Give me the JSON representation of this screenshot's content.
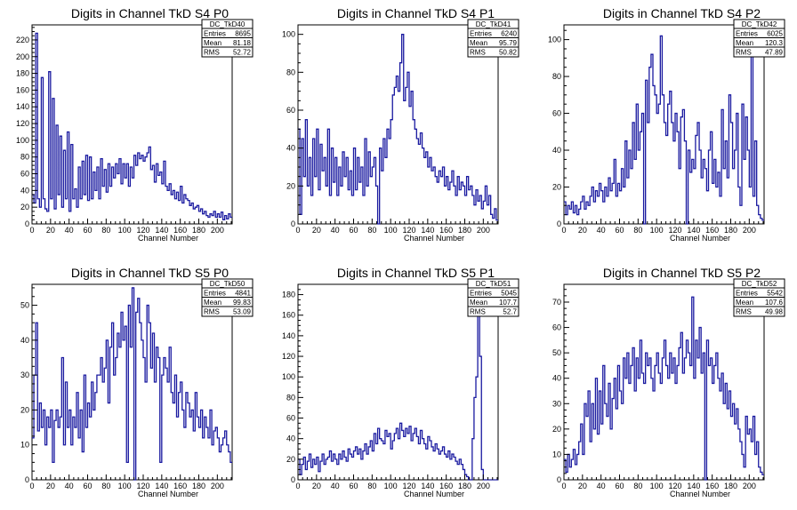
{
  "colors": {
    "histogram_line": "#1a1aa0",
    "frame": "#000000",
    "background": "#ffffff"
  },
  "chart_data": [
    {
      "type": "histogram",
      "title": "Digits in Channel TkD S4 P0",
      "xlabel": "Channel Number",
      "ylabel": "",
      "xlim": [
        0,
        216
      ],
      "ylim": [
        0,
        238
      ],
      "xticks": [
        0,
        20,
        40,
        60,
        80,
        100,
        120,
        140,
        160,
        180,
        200
      ],
      "yticks": [
        0,
        20,
        40,
        60,
        80,
        100,
        120,
        140,
        160,
        180,
        200,
        220
      ],
      "grid": false,
      "stats": {
        "name": "DC_TkD40",
        "entries": "8695",
        "mean": "81.18",
        "rms": "52.72"
      },
      "series": [
        {
          "x_start": 0,
          "bin_width": 2,
          "values": [
            35,
            25,
            228,
            30,
            20,
            175,
            30,
            18,
            15,
            182,
            30,
            150,
            18,
            118,
            35,
            105,
            20,
            88,
            30,
            110,
            15,
            95,
            30,
            42,
            20,
            68,
            30,
            75,
            35,
            82,
            28,
            80,
            30,
            62,
            40,
            68,
            30,
            78,
            45,
            65,
            38,
            72,
            45,
            68,
            55,
            72,
            60,
            78,
            48,
            72,
            55,
            72,
            45,
            68,
            55,
            82,
            70,
            85,
            78,
            82,
            75,
            80,
            85,
            92,
            65,
            70,
            50,
            72,
            58,
            62,
            48,
            75,
            45,
            40,
            48,
            35,
            40,
            30,
            38,
            28,
            45,
            25,
            35,
            30,
            28,
            22,
            25,
            18,
            20,
            22,
            15,
            18,
            12,
            15,
            10,
            8,
            12,
            10,
            15,
            8,
            12,
            8,
            14,
            5,
            10,
            6,
            12,
            8
          ]
        }
      ]
    },
    {
      "type": "histogram",
      "title": "Digits in Channel TkD S4 P1",
      "xlabel": "Channel Number",
      "ylabel": "",
      "xlim": [
        0,
        216
      ],
      "ylim": [
        0,
        105
      ],
      "xticks": [
        0,
        20,
        40,
        60,
        80,
        100,
        120,
        140,
        160,
        180,
        200
      ],
      "yticks": [
        0,
        20,
        40,
        60,
        80,
        100
      ],
      "grid": false,
      "stats": {
        "name": "DC_TkD41",
        "entries": "6240",
        "mean": "95.79",
        "rms": "50.82"
      },
      "series": [
        {
          "x_start": 0,
          "bin_width": 2,
          "values": [
            50,
            5,
            45,
            25,
            55,
            20,
            35,
            15,
            45,
            25,
            50,
            18,
            42,
            28,
            35,
            20,
            50,
            15,
            40,
            22,
            35,
            15,
            30,
            20,
            38,
            25,
            35,
            18,
            28,
            15,
            40,
            18,
            35,
            22,
            30,
            15,
            45,
            20,
            38,
            25,
            30,
            35,
            20,
            0,
            40,
            28,
            45,
            35,
            50,
            45,
            55,
            68,
            72,
            78,
            70,
            85,
            100,
            65,
            72,
            80,
            62,
            70,
            55,
            50,
            45,
            42,
            48,
            40,
            35,
            38,
            30,
            35,
            28,
            30,
            25,
            22,
            28,
            25,
            30,
            20,
            25,
            18,
            22,
            28,
            20,
            15,
            25,
            18,
            22,
            20,
            15,
            25,
            18,
            20,
            15,
            10,
            18,
            12,
            15,
            8,
            12,
            20,
            10,
            15,
            5,
            3,
            8,
            2
          ]
        }
      ]
    },
    {
      "type": "histogram",
      "title": "Digits in Channel TkD S4 P2",
      "xlabel": "Channel Number",
      "ylabel": "",
      "xlim": [
        0,
        216
      ],
      "ylim": [
        0,
        108
      ],
      "xticks": [
        0,
        20,
        40,
        60,
        80,
        100,
        120,
        140,
        160,
        180,
        200
      ],
      "yticks": [
        0,
        20,
        40,
        60,
        80,
        100
      ],
      "grid": false,
      "stats": {
        "name": "DC_TkD42",
        "entries": "6025",
        "mean": "120.3",
        "rms": "47.89"
      },
      "series": [
        {
          "x_start": 0,
          "bin_width": 2,
          "values": [
            12,
            5,
            10,
            8,
            12,
            6,
            10,
            5,
            8,
            12,
            15,
            8,
            12,
            10,
            15,
            20,
            12,
            18,
            15,
            22,
            18,
            12,
            20,
            15,
            25,
            18,
            22,
            35,
            15,
            22,
            18,
            30,
            20,
            45,
            25,
            40,
            30,
            55,
            35,
            65,
            40,
            50,
            60,
            0,
            78,
            55,
            85,
            92,
            75,
            70,
            60,
            65,
            102,
            70,
            55,
            48,
            65,
            72,
            55,
            45,
            60,
            50,
            30,
            58,
            62,
            45,
            0,
            40,
            28,
            35,
            30,
            48,
            55,
            40,
            25,
            35,
            30,
            18,
            40,
            50,
            22,
            35,
            20,
            28,
            15,
            62,
            30,
            45,
            25,
            70,
            55,
            30,
            40,
            60,
            20,
            10,
            65,
            35,
            58,
            40,
            20,
            98,
            15,
            45,
            10,
            5,
            3,
            2
          ]
        }
      ]
    },
    {
      "type": "histogram",
      "title": "Digits in Channel TkD S5 P0",
      "xlabel": "Channel Number",
      "ylabel": "",
      "xlim": [
        0,
        216
      ],
      "ylim": [
        0,
        56
      ],
      "xticks": [
        0,
        20,
        40,
        60,
        80,
        100,
        120,
        140,
        160,
        180,
        200
      ],
      "yticks": [
        0,
        10,
        20,
        30,
        40,
        50
      ],
      "grid": false,
      "stats": {
        "name": "DC_TkD50",
        "entries": "4841",
        "mean": "99.83",
        "rms": "53.09"
      },
      "series": [
        {
          "x_start": 0,
          "bin_width": 2,
          "values": [
            12,
            30,
            45,
            14,
            22,
            15,
            20,
            10,
            18,
            15,
            20,
            5,
            17,
            20,
            15,
            18,
            35,
            10,
            28,
            15,
            20,
            10,
            18,
            15,
            25,
            12,
            20,
            8,
            30,
            15,
            22,
            18,
            28,
            20,
            25,
            30,
            30,
            35,
            28,
            32,
            40,
            22,
            38,
            45,
            30,
            35,
            42,
            38,
            48,
            40,
            44,
            5,
            50,
            38,
            55,
            0,
            48,
            52,
            45,
            40,
            35,
            28,
            50,
            45,
            32,
            42,
            28,
            38,
            35,
            5,
            30,
            35,
            32,
            28,
            38,
            25,
            22,
            30,
            18,
            25,
            28,
            20,
            15,
            25,
            22,
            18,
            20,
            14,
            25,
            18,
            15,
            20,
            12,
            18,
            15,
            12,
            20,
            10,
            14,
            15,
            12,
            8,
            10,
            12,
            14,
            10,
            8,
            5
          ]
        }
      ]
    },
    {
      "type": "histogram",
      "title": "Digits in Channel TkD S5 P1",
      "xlabel": "Channel Number",
      "ylabel": "",
      "xlim": [
        0,
        216
      ],
      "ylim": [
        0,
        190
      ],
      "xticks": [
        0,
        20,
        40,
        60,
        80,
        100,
        120,
        140,
        160,
        180,
        200
      ],
      "yticks": [
        0,
        20,
        40,
        60,
        80,
        100,
        120,
        140,
        160,
        180
      ],
      "grid": false,
      "stats": {
        "name": "DC_TkD51",
        "entries": "5045",
        "mean": "107.7",
        "rms": "52.7"
      },
      "series": [
        {
          "x_start": 0,
          "bin_width": 2,
          "values": [
            20,
            5,
            15,
            22,
            10,
            18,
            25,
            12,
            20,
            15,
            22,
            8,
            18,
            25,
            15,
            20,
            22,
            28,
            18,
            25,
            20,
            15,
            25,
            20,
            28,
            22,
            18,
            30,
            25,
            22,
            28,
            32,
            25,
            30,
            20,
            28,
            35,
            25,
            32,
            38,
            28,
            45,
            35,
            50,
            40,
            38,
            35,
            48,
            42,
            45,
            30,
            38,
            45,
            50,
            40,
            55,
            48,
            42,
            50,
            45,
            52,
            38,
            45,
            50,
            42,
            35,
            48,
            40,
            35,
            30,
            42,
            38,
            32,
            28,
            35,
            30,
            25,
            28,
            32,
            25,
            22,
            28,
            20,
            25,
            22,
            18,
            15,
            20,
            15,
            10,
            5,
            3,
            0,
            0,
            40,
            80,
            100,
            165,
            120,
            10,
            0,
            0,
            0,
            0,
            0,
            0,
            0,
            0
          ]
        }
      ]
    },
    {
      "type": "histogram",
      "title": "Digits in Channel TkD S5 P2",
      "xlabel": "Channel Number",
      "ylabel": "",
      "xlim": [
        0,
        216
      ],
      "ylim": [
        0,
        77
      ],
      "xticks": [
        0,
        20,
        40,
        60,
        80,
        100,
        120,
        140,
        160,
        180,
        200
      ],
      "yticks": [
        0,
        10,
        20,
        30,
        40,
        50,
        60,
        70
      ],
      "grid": false,
      "stats": {
        "name": "DC_TkD52",
        "entries": "5542",
        "mean": "107.6",
        "rms": "49.98"
      },
      "series": [
        {
          "x_start": 0,
          "bin_width": 2,
          "values": [
            8,
            3,
            10,
            5,
            8,
            12,
            6,
            10,
            15,
            22,
            10,
            30,
            25,
            35,
            15,
            30,
            20,
            40,
            18,
            35,
            22,
            45,
            30,
            25,
            38,
            20,
            32,
            40,
            28,
            45,
            35,
            30,
            48,
            40,
            50,
            38,
            45,
            52,
            35,
            48,
            40,
            55,
            42,
            38,
            50,
            45,
            48,
            40,
            35,
            45,
            50,
            42,
            38,
            48,
            55,
            45,
            40,
            50,
            42,
            48,
            38,
            45,
            52,
            58,
            42,
            48,
            55,
            50,
            45,
            72,
            40,
            55,
            48,
            60,
            42,
            50,
            0,
            55,
            45,
            48,
            38,
            45,
            50,
            40,
            35,
            42,
            30,
            38,
            28,
            35,
            25,
            30,
            22,
            28,
            20,
            15,
            10,
            5,
            25,
            18,
            20,
            15,
            25,
            10,
            15,
            5,
            3,
            2
          ]
        }
      ]
    }
  ]
}
